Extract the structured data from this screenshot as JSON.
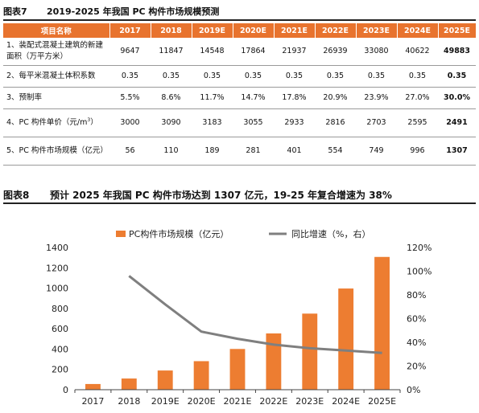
{
  "table_section": {
    "fig_no": "图表7",
    "title": "2019-2025 年我国 PC 构件市场规模预测",
    "columns": [
      "项目名称",
      "2017",
      "2018",
      "2019E",
      "2020E",
      "2021E",
      "2022E",
      "2023E",
      "2024E",
      "2025E"
    ],
    "rows": [
      {
        "label": "1、装配式混凝土建筑的新建面积（万平方米）",
        "values": [
          "9647",
          "11847",
          "14548",
          "17864",
          "21937",
          "26939",
          "33080",
          "40622",
          "49883"
        ]
      },
      {
        "label": "2、每平米混凝土体积系数",
        "values": [
          "0.35",
          "0.35",
          "0.35",
          "0.35",
          "0.35",
          "0.35",
          "0.35",
          "0.35",
          "0.35"
        ]
      },
      {
        "label": "3、预制率",
        "values": [
          "5.5%",
          "8.6%",
          "11.7%",
          "14.7%",
          "17.8%",
          "20.9%",
          "23.9%",
          "27.0%",
          "30.0%"
        ]
      },
      {
        "label": "4、PC 构件单价（元/m",
        "label_sup": "3",
        "label_tail": "）",
        "values": [
          "3000",
          "3090",
          "3183",
          "3055",
          "2933",
          "2816",
          "2703",
          "2595",
          "2491"
        ]
      },
      {
        "label": "5、PC 构件市场规模（亿元）",
        "values": [
          "56",
          "110",
          "189",
          "281",
          "401",
          "554",
          "749",
          "996",
          "1307"
        ]
      }
    ]
  },
  "chart_section": {
    "fig_no": "图表8",
    "title": "预计 2025 年我国 PC 构件市场达到 1307 亿元，19-25 年复合增速为 38%"
  },
  "chart_data": {
    "type": "bar",
    "title": "",
    "categories": [
      "2017",
      "2018",
      "2019E",
      "2020E",
      "2021E",
      "2022E",
      "2023E",
      "2024E",
      "2025E"
    ],
    "series": [
      {
        "name": "PC构件市场规模（亿元）",
        "type": "bar",
        "axis": "left",
        "values": [
          56,
          110,
          189,
          281,
          401,
          554,
          749,
          996,
          1307
        ]
      },
      {
        "name": "同比增速（%，右）",
        "type": "line",
        "axis": "right",
        "values": [
          null,
          96,
          72,
          49,
          43,
          38,
          35,
          33,
          31
        ]
      }
    ],
    "y_left": {
      "min": 0,
      "max": 1400,
      "step": 200,
      "ticks": [
        "0",
        "200",
        "400",
        "600",
        "800",
        "1000",
        "1200",
        "1400"
      ]
    },
    "y_right": {
      "min": 0,
      "max": 120,
      "step": 20,
      "ticks": [
        "0%",
        "20%",
        "40%",
        "60%",
        "80%",
        "100%",
        "120%"
      ]
    },
    "xlabel": "",
    "ylabel": "",
    "legend_position": "top",
    "grid": false,
    "colors": {
      "bar": "#ed7d31",
      "line": "#7f7f7f",
      "axis": "#444444"
    }
  }
}
